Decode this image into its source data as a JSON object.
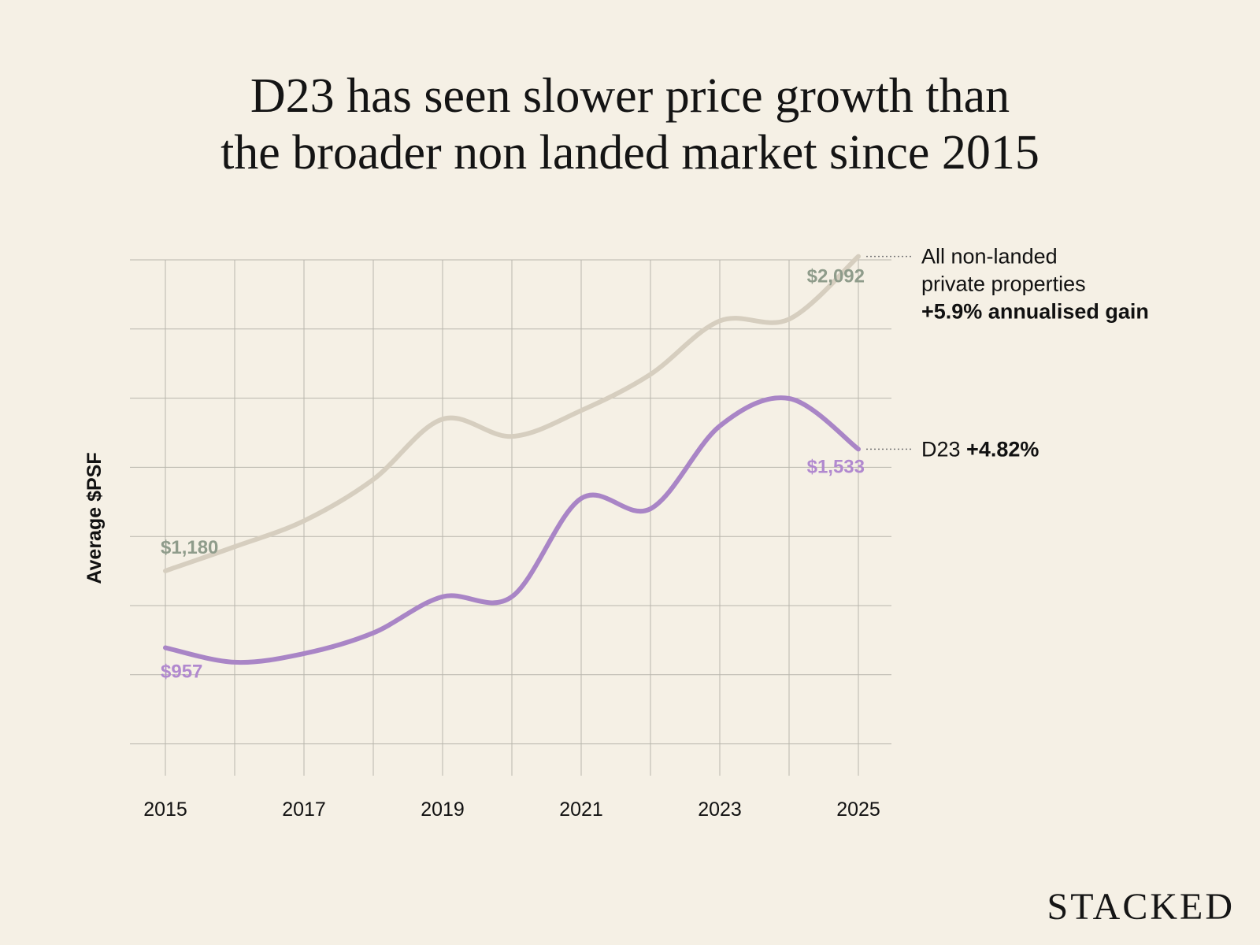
{
  "title_lines": [
    "D23 has seen slower price growth than",
    "the broader non landed market since 2015"
  ],
  "brand": "STACKED",
  "colors": {
    "background": "#f5f0e5",
    "grid": "#b9b6ad",
    "all_non_landed_line": "#d6cebf",
    "all_non_landed_label": "#8f9c8b",
    "d23_line": "#a985c6",
    "d23_label": "#b189cf",
    "text": "#111111"
  },
  "chart_data": {
    "type": "line",
    "title": "D23 has seen slower price growth than the broader non landed market since 2015",
    "ylabel": "Average $PSF",
    "xlabel": "",
    "x": [
      2015,
      2016,
      2017,
      2018,
      2019,
      2020,
      2021,
      2022,
      2023,
      2024,
      2025
    ],
    "x_ticks": [
      "2015",
      "2017",
      "2019",
      "2021",
      "2023",
      "2025"
    ],
    "ylim": [
      700,
      2200
    ],
    "grid": true,
    "series": [
      {
        "name": "All non-landed private properties",
        "values": [
          1180,
          1250,
          1325,
          1445,
          1620,
          1570,
          1645,
          1750,
          1905,
          1910,
          2092
        ],
        "start_label": "$1,180",
        "end_label": "$2,092",
        "legend_lines": [
          "All non-landed",
          "private properties"
        ],
        "legend_bold": "+5.9% annualised gain"
      },
      {
        "name": "D23",
        "values": [
          957,
          915,
          940,
          1000,
          1105,
          1105,
          1390,
          1360,
          1600,
          1680,
          1533
        ],
        "start_label": "$957",
        "end_label": "$1,533",
        "legend_lines": [
          "D23"
        ],
        "legend_bold": "+4.82%"
      }
    ]
  }
}
